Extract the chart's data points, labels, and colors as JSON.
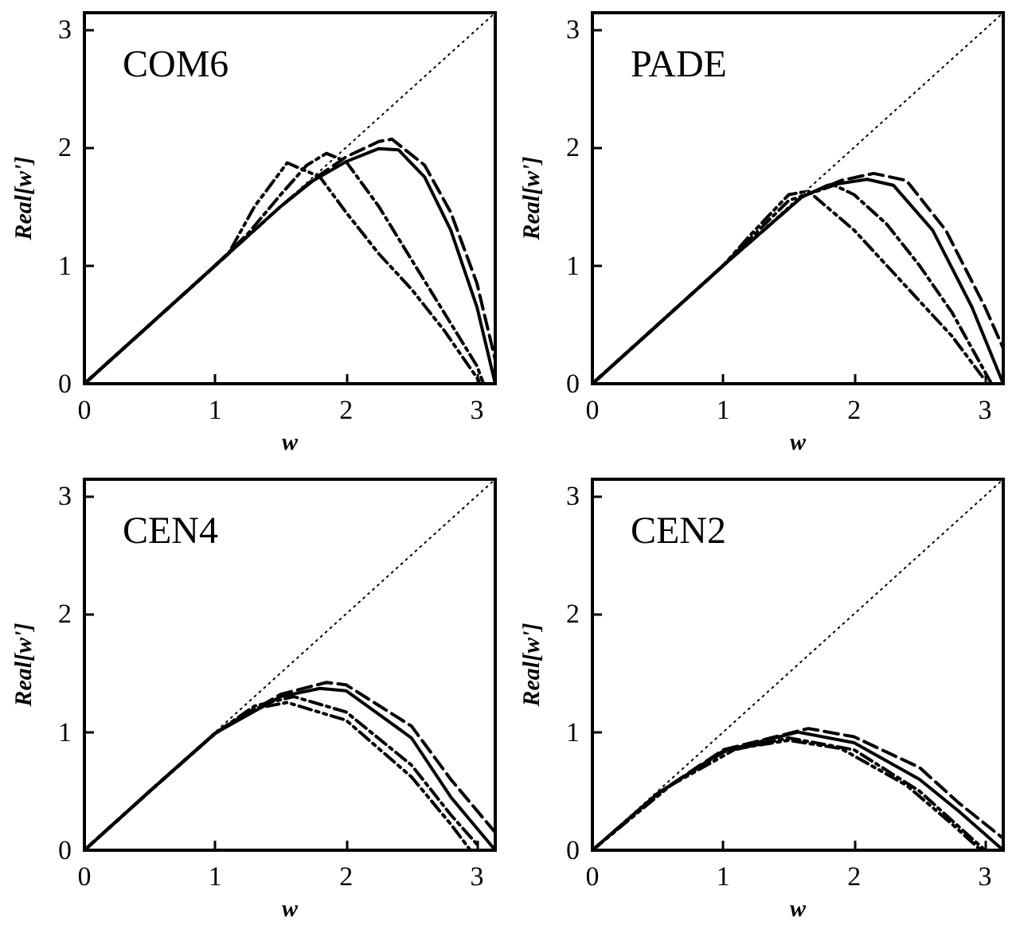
{
  "chart_data": [
    {
      "type": "line",
      "title": "COM6",
      "xlabel": "w",
      "ylabel": "Real[w']",
      "xlim": [
        0,
        3.14
      ],
      "ylim": [
        0,
        3.14
      ],
      "xticks": [
        0,
        1,
        2,
        3
      ],
      "yticks": [
        0,
        1,
        2,
        3
      ],
      "series": [
        {
          "color": "#000000",
          "line_style": "dotted",
          "x": [
            0,
            3.14
          ],
          "values": [
            0,
            3.14
          ]
        },
        {
          "color": "#000000",
          "line_style": "solid",
          "x": [
            0,
            1,
            1.5,
            1.75,
            2,
            2.25,
            2.4,
            2.6,
            2.8,
            3.0,
            3.14
          ],
          "values": [
            0,
            1,
            1.5,
            1.72,
            1.88,
            1.99,
            1.98,
            1.75,
            1.3,
            0.65,
            0
          ]
        },
        {
          "color": "#000000",
          "line_style": "dashed",
          "x": [
            0,
            1,
            1.5,
            1.75,
            2,
            2.25,
            2.35,
            2.6,
            2.8,
            3.0,
            3.14
          ],
          "values": [
            0,
            1,
            1.5,
            1.73,
            1.92,
            2.05,
            2.07,
            1.85,
            1.45,
            0.85,
            0.2
          ]
        },
        {
          "color": "#000000",
          "line_style": "dashdot",
          "x": [
            0,
            1,
            1.25,
            1.5,
            1.7,
            1.85,
            2,
            2.25,
            2.5,
            2.75,
            3.0,
            3.05
          ],
          "values": [
            0,
            1,
            1.27,
            1.6,
            1.85,
            1.95,
            1.88,
            1.5,
            1.05,
            0.6,
            0.15,
            0
          ]
        },
        {
          "color": "#000000",
          "line_style": "dashdotdot",
          "x": [
            0,
            1,
            1.1,
            1.3,
            1.55,
            1.8,
            2,
            2.25,
            2.5,
            2.75,
            3.0,
            3.03
          ],
          "values": [
            0,
            1,
            1.1,
            1.5,
            1.87,
            1.75,
            1.45,
            1.1,
            0.8,
            0.45,
            0.05,
            0
          ]
        }
      ]
    },
    {
      "type": "line",
      "title": "PADE",
      "xlabel": "w",
      "ylabel": "Real[w']",
      "xlim": [
        0,
        3.14
      ],
      "ylim": [
        0,
        3.14
      ],
      "xticks": [
        0,
        1,
        2,
        3
      ],
      "yticks": [
        0,
        1,
        2,
        3
      ],
      "series": [
        {
          "color": "#000000",
          "line_style": "dotted",
          "x": [
            0,
            3.14
          ],
          "values": [
            0,
            3.14
          ]
        },
        {
          "color": "#000000",
          "line_style": "solid",
          "x": [
            0,
            1,
            1.6,
            1.8,
            2.1,
            2.3,
            2.6,
            2.9,
            3.14
          ],
          "values": [
            0,
            1,
            1.58,
            1.68,
            1.73,
            1.68,
            1.3,
            0.65,
            0
          ]
        },
        {
          "color": "#000000",
          "line_style": "dashed",
          "x": [
            0,
            1,
            1.6,
            1.9,
            2.15,
            2.4,
            2.7,
            3.0,
            3.14
          ],
          "values": [
            0,
            1,
            1.58,
            1.72,
            1.78,
            1.72,
            1.3,
            0.65,
            0.3
          ]
        },
        {
          "color": "#000000",
          "line_style": "dashdot",
          "x": [
            0,
            1,
            1.5,
            1.85,
            2,
            2.25,
            2.5,
            2.75,
            3.0,
            3.05
          ],
          "values": [
            0,
            1,
            1.55,
            1.68,
            1.6,
            1.35,
            1.0,
            0.6,
            0.1,
            0
          ]
        },
        {
          "color": "#000000",
          "line_style": "dashdotdot",
          "x": [
            0,
            1,
            1.2,
            1.5,
            1.65,
            2,
            2.5,
            2.75,
            3.0
          ],
          "values": [
            0,
            1,
            1.25,
            1.6,
            1.63,
            1.3,
            0.7,
            0.4,
            0.03
          ]
        }
      ]
    },
    {
      "type": "line",
      "title": "CEN4",
      "xlabel": "w",
      "ylabel": "Real[w']",
      "xlim": [
        0,
        3.14
      ],
      "ylim": [
        0,
        3.14
      ],
      "xticks": [
        0,
        1,
        2,
        3
      ],
      "yticks": [
        0,
        1,
        2,
        3
      ],
      "series": [
        {
          "color": "#000000",
          "line_style": "dotted",
          "x": [
            0,
            3.14
          ],
          "values": [
            0,
            3.14
          ]
        },
        {
          "color": "#000000",
          "line_style": "solid",
          "x": [
            0,
            0.5,
            1,
            1.5,
            1.8,
            2,
            2.5,
            2.8,
            3.14
          ],
          "values": [
            0,
            0.5,
            0.99,
            1.3,
            1.37,
            1.35,
            0.95,
            0.45,
            0
          ]
        },
        {
          "color": "#000000",
          "line_style": "dashed",
          "x": [
            0,
            0.5,
            1,
            1.5,
            1.85,
            2,
            2.5,
            2.8,
            3.14
          ],
          "values": [
            0,
            0.5,
            0.99,
            1.32,
            1.42,
            1.4,
            1.05,
            0.6,
            0.15
          ]
        },
        {
          "color": "#000000",
          "line_style": "dashdot",
          "x": [
            0,
            0.5,
            1,
            1.3,
            1.6,
            2,
            2.5,
            2.8,
            3.0
          ],
          "values": [
            0,
            0.5,
            0.99,
            1.22,
            1.3,
            1.17,
            0.72,
            0.3,
            0.05
          ]
        },
        {
          "color": "#000000",
          "line_style": "dashdotdot",
          "x": [
            0,
            0.5,
            1,
            1.3,
            1.55,
            2,
            2.5,
            2.8,
            2.95
          ],
          "values": [
            0,
            0.5,
            0.99,
            1.2,
            1.25,
            1.1,
            0.62,
            0.22,
            0
          ]
        }
      ]
    },
    {
      "type": "line",
      "title": "CEN2",
      "xlabel": "w",
      "ylabel": "Real[w']",
      "xlim": [
        0,
        3.14
      ],
      "ylim": [
        0,
        3.14
      ],
      "xticks": [
        0,
        1,
        2,
        3
      ],
      "yticks": [
        0,
        1,
        2,
        3
      ],
      "series": [
        {
          "color": "#000000",
          "line_style": "dotted",
          "x": [
            0,
            3.14
          ],
          "values": [
            0,
            3.14
          ]
        },
        {
          "color": "#000000",
          "line_style": "solid",
          "x": [
            0,
            0.5,
            1,
            1.57,
            2,
            2.5,
            2.8,
            3.14
          ],
          "values": [
            0,
            0.48,
            0.84,
            1.0,
            0.91,
            0.6,
            0.33,
            0
          ]
        },
        {
          "color": "#000000",
          "line_style": "dashed",
          "x": [
            0,
            0.5,
            1,
            1.65,
            2,
            2.5,
            2.8,
            3.14
          ],
          "values": [
            0,
            0.48,
            0.85,
            1.03,
            0.96,
            0.7,
            0.4,
            0.1
          ]
        },
        {
          "color": "#000000",
          "line_style": "dashdot",
          "x": [
            0,
            0.5,
            1,
            1.5,
            2,
            2.5,
            2.8,
            3.0
          ],
          "values": [
            0,
            0.48,
            0.83,
            0.95,
            0.85,
            0.5,
            0.2,
            0
          ]
        },
        {
          "color": "#000000",
          "line_style": "dashdotdot",
          "x": [
            0,
            0.6,
            1.1,
            1.5,
            1.9,
            2.4,
            2.75,
            2.97
          ],
          "values": [
            0,
            0.55,
            0.86,
            0.93,
            0.86,
            0.55,
            0.22,
            0
          ]
        }
      ]
    }
  ]
}
